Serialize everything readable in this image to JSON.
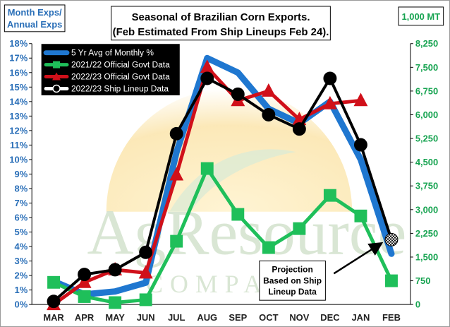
{
  "chart_data": {
    "type": "line",
    "title_lines": [
      "Seasonal of Brazilian Corn Exports.",
      "(Feb Estimated From Ship Lineups Feb 24)."
    ],
    "left_axis_label_lines": [
      "Month Exps/",
      "Annual Exps"
    ],
    "right_axis_label": "1,000 MT",
    "categories": [
      "MAR",
      "APR",
      "MAY",
      "JUN",
      "JUL",
      "AUG",
      "SEP",
      "OCT",
      "NOV",
      "DEC",
      "JAN",
      "FEB"
    ],
    "y_left": {
      "min": 0,
      "max": 18,
      "step": 1,
      "unit": "%",
      "ticks": [
        "0%",
        "1%",
        "2%",
        "3%",
        "4%",
        "5%",
        "6%",
        "7%",
        "8%",
        "9%",
        "10%",
        "11%",
        "12%",
        "13%",
        "14%",
        "15%",
        "16%",
        "17%",
        "18%"
      ]
    },
    "y_right": {
      "min": 0,
      "max": 8250,
      "step": 750,
      "ticks": [
        "0",
        "750",
        "1,500",
        "2,250",
        "3,000",
        "3,750",
        "4,500",
        "5,250",
        "6,000",
        "6,750",
        "7,500",
        "8,250"
      ]
    },
    "series": [
      {
        "name": "5 Yr Avg of Monthly %",
        "axis": "left",
        "color": "#1f77d0",
        "marker": "none",
        "values": [
          1.6,
          0.7,
          0.9,
          1.5,
          10.5,
          17.0,
          16.0,
          13.5,
          12.5,
          14.0,
          10.0,
          3.5
        ]
      },
      {
        "name": "2021/22 Official Govt Data",
        "axis": "right",
        "color": "#1fbf5a",
        "marker": "square",
        "values": [
          700,
          250,
          60,
          150,
          2000,
          4300,
          2850,
          1800,
          2400,
          3450,
          2800,
          750
        ]
      },
      {
        "name": "2022/23 Official Govt Data",
        "axis": "right",
        "color": "#d0101a",
        "marker": "triangle",
        "values": [
          0,
          700,
          1100,
          1000,
          4100,
          7500,
          6450,
          6750,
          5850,
          6350,
          6450,
          null
        ]
      },
      {
        "name": "2022/23 Ship Lineup Data",
        "axis": "right",
        "color": "#000000",
        "marker": "circle",
        "values": [
          100,
          950,
          1100,
          1650,
          5400,
          7150,
          6650,
          6000,
          5550,
          7150,
          5050,
          2050
        ]
      }
    ],
    "annotation": {
      "lines": [
        "Projection",
        "Based on Ship",
        "Lineup Data"
      ],
      "points_to": "FEB"
    },
    "watermark": {
      "main": "AgResource",
      "sub": "COMPANY"
    },
    "legend_position": "top-left",
    "grid": false
  }
}
